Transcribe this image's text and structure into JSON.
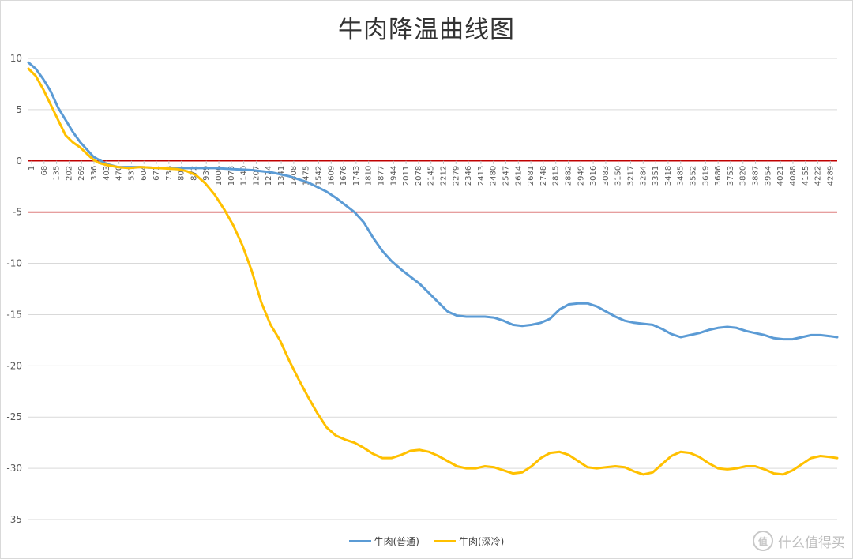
{
  "chart_data": {
    "type": "line",
    "title": "牛肉降温曲线图",
    "xlabel": "",
    "ylabel": "",
    "ylim": [
      -35,
      10
    ],
    "yticks": [
      10,
      5,
      0,
      -5,
      -10,
      -15,
      -20,
      -25,
      -30,
      -35
    ],
    "xlim": [
      1,
      4340
    ],
    "xtick_labels": [
      "1",
      "68",
      "135",
      "202",
      "269",
      "336",
      "403",
      "470",
      "537",
      "604",
      "671",
      "738",
      "805",
      "872",
      "939",
      "1006",
      "1073",
      "1140",
      "1207",
      "1274",
      "1341",
      "1408",
      "1475",
      "1542",
      "1609",
      "1676",
      "1743",
      "1810",
      "1877",
      "1944",
      "2011",
      "2078",
      "2145",
      "2212",
      "2279",
      "2346",
      "2413",
      "2480",
      "2547",
      "2614",
      "2681",
      "2748",
      "2815",
      "2882",
      "2949",
      "3016",
      "3083",
      "3150",
      "3217",
      "3284",
      "3351",
      "3418",
      "3485",
      "3552",
      "3619",
      "3686",
      "3753",
      "3820",
      "3887",
      "3954",
      "4021",
      "4088",
      "4155",
      "4222",
      "4289"
    ],
    "reference_lines": [
      {
        "y": 0,
        "color": "#c00000"
      },
      {
        "y": -5,
        "color": "#c00000"
      }
    ],
    "legend_position": "bottom",
    "series": [
      {
        "name": "牛肉(普通)",
        "color": "#5b9bd5",
        "x": [
          1,
          40,
          80,
          120,
          160,
          200,
          240,
          280,
          320,
          350,
          380,
          420,
          480,
          540,
          600,
          700,
          800,
          900,
          1000,
          1100,
          1200,
          1300,
          1350,
          1400,
          1500,
          1600,
          1650,
          1700,
          1750,
          1800,
          1850,
          1900,
          1950,
          2000,
          2050,
          2100,
          2150,
          2200,
          2250,
          2300,
          2350,
          2400,
          2450,
          2500,
          2550,
          2600,
          2650,
          2700,
          2750,
          2800,
          2850,
          2900,
          2950,
          3000,
          3050,
          3100,
          3150,
          3200,
          3250,
          3300,
          3350,
          3400,
          3450,
          3500,
          3550,
          3600,
          3650,
          3700,
          3750,
          3800,
          3850,
          3900,
          3950,
          4000,
          4050,
          4100,
          4150,
          4200,
          4250,
          4300,
          4340
        ],
        "values": [
          9.6,
          9.0,
          8.0,
          6.8,
          5.2,
          4.0,
          2.8,
          1.8,
          1.0,
          0.4,
          0.1,
          -0.3,
          -0.6,
          -0.6,
          -0.6,
          -0.7,
          -0.7,
          -0.7,
          -0.7,
          -0.8,
          -0.9,
          -1.1,
          -1.3,
          -1.5,
          -2.1,
          -3.0,
          -3.6,
          -4.3,
          -5.0,
          -6.0,
          -7.5,
          -8.8,
          -9.8,
          -10.6,
          -11.3,
          -12.0,
          -12.9,
          -13.8,
          -14.7,
          -15.1,
          -15.2,
          -15.2,
          -15.2,
          -15.3,
          -15.6,
          -16.0,
          -16.1,
          -16.0,
          -15.8,
          -15.4,
          -14.5,
          -14.0,
          -13.9,
          -13.9,
          -14.2,
          -14.7,
          -15.2,
          -15.6,
          -15.8,
          -15.9,
          -16.0,
          -16.4,
          -16.9,
          -17.2,
          -17.0,
          -16.8,
          -16.5,
          -16.3,
          -16.2,
          -16.3,
          -16.6,
          -16.8,
          -17.0,
          -17.3,
          -17.4,
          -17.4,
          -17.2,
          -17.0,
          -17.0,
          -17.1,
          -17.2
        ]
      },
      {
        "name": "牛肉(深冷)",
        "color": "#ffc000",
        "x": [
          1,
          40,
          80,
          120,
          160,
          200,
          240,
          280,
          320,
          350,
          380,
          420,
          480,
          540,
          600,
          700,
          800,
          850,
          900,
          950,
          1000,
          1050,
          1100,
          1150,
          1200,
          1250,
          1300,
          1350,
          1400,
          1450,
          1500,
          1550,
          1600,
          1650,
          1700,
          1750,
          1800,
          1850,
          1900,
          1950,
          2000,
          2050,
          2100,
          2150,
          2200,
          2250,
          2300,
          2350,
          2400,
          2450,
          2500,
          2550,
          2600,
          2650,
          2700,
          2750,
          2800,
          2850,
          2900,
          2950,
          3000,
          3050,
          3100,
          3150,
          3200,
          3250,
          3300,
          3350,
          3400,
          3450,
          3500,
          3550,
          3600,
          3650,
          3700,
          3750,
          3800,
          3850,
          3900,
          3950,
          4000,
          4050,
          4100,
          4150,
          4200,
          4250,
          4300,
          4340
        ],
        "values": [
          9.0,
          8.3,
          7.0,
          5.5,
          4.0,
          2.5,
          1.8,
          1.3,
          0.6,
          0.1,
          -0.2,
          -0.4,
          -0.6,
          -0.7,
          -0.6,
          -0.7,
          -0.8,
          -1.0,
          -1.4,
          -2.2,
          -3.3,
          -4.7,
          -6.3,
          -8.3,
          -10.8,
          -13.8,
          -16.0,
          -17.5,
          -19.5,
          -21.3,
          -23.0,
          -24.6,
          -26.0,
          -26.8,
          -27.2,
          -27.5,
          -28.0,
          -28.6,
          -29.0,
          -29.0,
          -28.7,
          -28.3,
          -28.2,
          -28.4,
          -28.8,
          -29.3,
          -29.8,
          -30.0,
          -30.0,
          -29.8,
          -29.9,
          -30.2,
          -30.5,
          -30.4,
          -29.8,
          -29.0,
          -28.5,
          -28.4,
          -28.7,
          -29.3,
          -29.9,
          -30.0,
          -29.9,
          -29.8,
          -29.9,
          -30.3,
          -30.6,
          -30.4,
          -29.6,
          -28.8,
          -28.4,
          -28.5,
          -28.9,
          -29.5,
          -30.0,
          -30.1,
          -30.0,
          -29.8,
          -29.8,
          -30.1,
          -30.5,
          -30.6,
          -30.2,
          -29.6,
          -29.0,
          -28.8,
          -28.9,
          -29.0
        ]
      }
    ]
  },
  "watermark": {
    "badge": "值",
    "text": "什么值得买"
  }
}
